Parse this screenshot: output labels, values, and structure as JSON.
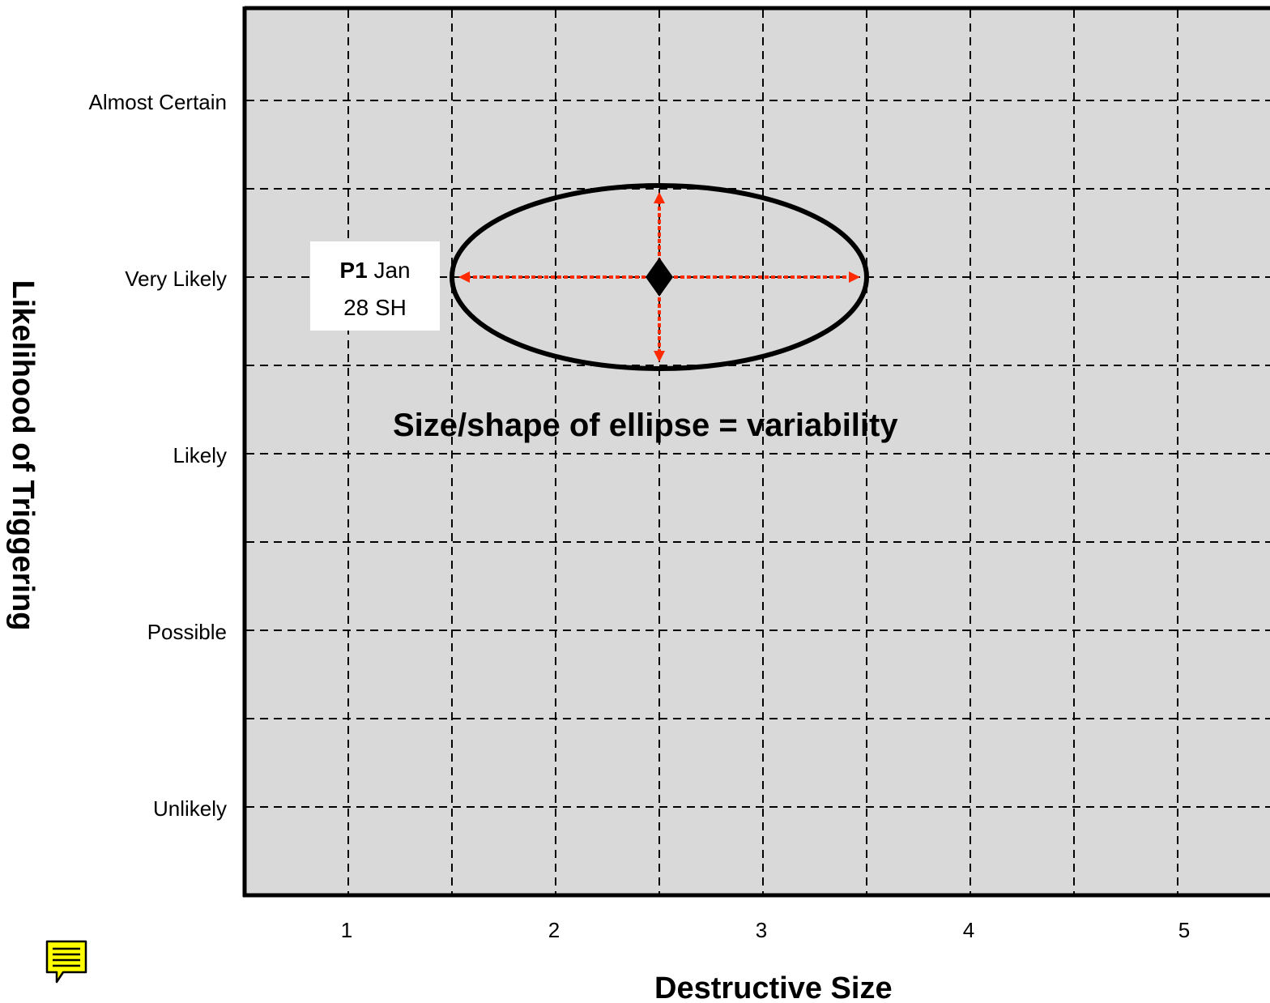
{
  "chart_data": {
    "type": "scatter",
    "xlabel": "Destructive Size",
    "ylabel": "Likelihood of Triggering",
    "x_ticks": [
      1,
      2,
      3,
      4,
      5
    ],
    "y_tick_labels": [
      "Unlikely",
      "Possible",
      "Likely",
      "Very Likely",
      "Almost Certain"
    ],
    "points": [
      {
        "label_bold": "P1",
        "label_rest": "Jan",
        "label_line2": "28 SH",
        "x": 2.5,
        "y": "Very Likely",
        "x_range": [
          1.5,
          3.5
        ],
        "y_range_steps": 1
      }
    ],
    "annotation": "Size/shape of ellipse = variability",
    "grid": true,
    "background_color": "#d9d9d9",
    "arrow_color": "#ff2a00",
    "ellipse_color": "#000000"
  },
  "icons": {
    "note": "note-icon"
  },
  "colors": {
    "note_fill": "#ffff00"
  }
}
